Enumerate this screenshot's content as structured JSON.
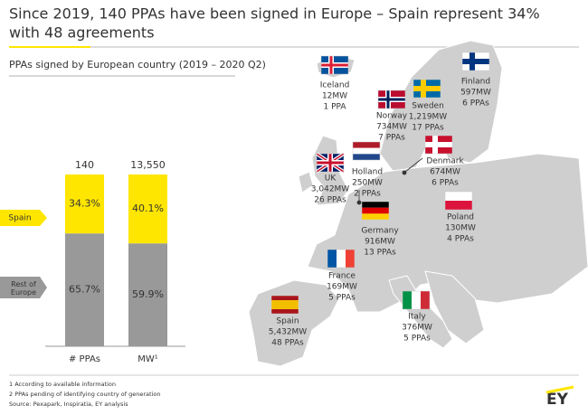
{
  "title": "Since 2019, 140 PPAs have been signed in Europe – Spain represent 34% with 48 agreements",
  "title_lines": [
    "Since 2019, 140 PPAs have been signed in Europe – Spain represent 34%",
    "with 48 agreements"
  ],
  "chart_data": {
    "type": "bar",
    "stacked": true,
    "title": "PPAs signed by European country (2019 – 2020 Q2)",
    "categories": [
      "# PPAs",
      "MW¹"
    ],
    "annotations": [
      "140",
      "13,550"
    ],
    "series": [
      {
        "name": "Rest of Europe",
        "color": "#999999",
        "values": [
          65.7,
          59.9
        ],
        "value_labels": [
          "65.7%",
          "59.9%"
        ]
      },
      {
        "name": "Spain",
        "color": "#ffe600",
        "values": [
          34.3,
          40.1
        ],
        "value_labels": [
          "34.3%",
          "40.1%"
        ]
      }
    ]
  },
  "map": {
    "countries": [
      {
        "name": "Iceland",
        "capacity": "12MW",
        "ppas": "1 PPA",
        "flag": {
          "kind": "cross",
          "colors": [
            "#02529c",
            "#ffffff",
            "#dc1e35"
          ]
        }
      },
      {
        "name": "Finland",
        "capacity": "597MW",
        "ppas": "6 PPAs",
        "flag": {
          "kind": "cross",
          "colors": [
            "#ffffff",
            "#003580"
          ]
        }
      },
      {
        "name": "Norway",
        "capacity": "734MW",
        "ppas": "7 PPAs",
        "flag": {
          "kind": "cross",
          "colors": [
            "#ba0c2f",
            "#ffffff",
            "#00205b"
          ]
        }
      },
      {
        "name": "Sweden",
        "capacity": "1,219MW",
        "ppas": "17 PPAs",
        "flag": {
          "kind": "cross",
          "colors": [
            "#006aa7",
            "#fecc00"
          ]
        }
      },
      {
        "name": "Denmark",
        "capacity": "674MW",
        "ppas": "6 PPAs",
        "flag": {
          "kind": "cross",
          "colors": [
            "#c8102e",
            "#ffffff"
          ]
        }
      },
      {
        "name": "Holland",
        "capacity": "250MW",
        "ppas": "2 PPAs",
        "flag": {
          "kind": "h",
          "colors": [
            "#ae1c28",
            "#ffffff",
            "#21468b"
          ]
        }
      },
      {
        "name": "UK",
        "capacity": "3,042MW",
        "ppas": "26 PPAs",
        "flag": {
          "kind": "uk",
          "colors": [
            "#012169",
            "#ffffff",
            "#c8102e"
          ]
        }
      },
      {
        "name": "Germany",
        "capacity": "916MW",
        "ppas": "13 PPAs",
        "flag": {
          "kind": "h",
          "colors": [
            "#000000",
            "#dd0000",
            "#ffce00"
          ]
        }
      },
      {
        "name": "Poland",
        "capacity": "130MW",
        "ppas": "4 PPAs",
        "flag": {
          "kind": "h",
          "colors": [
            "#ffffff",
            "#dc143c"
          ]
        }
      },
      {
        "name": "France",
        "capacity": "169MW",
        "ppas": "5 PPAs",
        "flag": {
          "kind": "v",
          "colors": [
            "#0055a4",
            "#ffffff",
            "#ef4135"
          ]
        }
      },
      {
        "name": "Spain",
        "capacity": "5,432MW",
        "ppas": "48 PPAs",
        "flag": {
          "kind": "h3",
          "colors": [
            "#aa151b",
            "#f1bf00"
          ]
        }
      },
      {
        "name": "Italy",
        "capacity": "376MW",
        "ppas": "5 PPAs",
        "flag": {
          "kind": "v",
          "colors": [
            "#009246",
            "#ffffff",
            "#ce2b37"
          ]
        }
      }
    ]
  },
  "footnotes": [
    "1 According to available information",
    "2 PPAs pending of identifying country of generation",
    "Source: Pexapark, Inspiratia, EY analysis"
  ],
  "logo": "EY"
}
